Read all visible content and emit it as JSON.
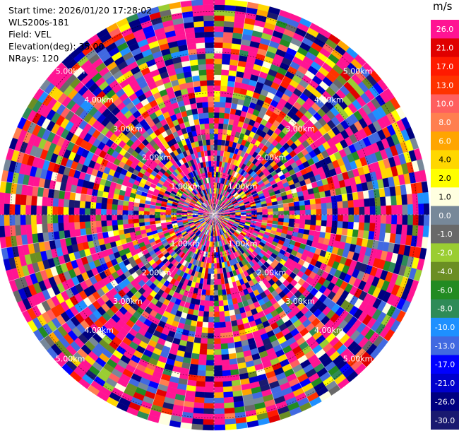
{
  "header": {
    "start_time": "Start time: 2026/01/20 17:28:02",
    "instrument": "WLS200s-181",
    "field": "Field: VEL",
    "elevation": "Elevation(deg): 35.00",
    "nrays": "NRays: 120"
  },
  "colorbar": {
    "unit": "m/s",
    "levels": [
      {
        "label": "26.0",
        "color": "#ff1493"
      },
      {
        "label": "21.0",
        "color": "#e00000"
      },
      {
        "label": "17.0",
        "color": "#ff1a00"
      },
      {
        "label": "13.0",
        "color": "#ff3300"
      },
      {
        "label": "10.0",
        "color": "#ff5f5f"
      },
      {
        "label": "8.0",
        "color": "#ff7f50"
      },
      {
        "label": "6.0",
        "color": "#ffa500"
      },
      {
        "label": "4.0",
        "color": "#ffd700"
      },
      {
        "label": "2.0",
        "color": "#ffff00"
      },
      {
        "label": "1.0",
        "color": "#ffffe0"
      },
      {
        "label": "0.0",
        "color": "#778899"
      },
      {
        "label": "-1.0",
        "color": "#696969"
      },
      {
        "label": "-2.0",
        "color": "#9acd32"
      },
      {
        "label": "-4.0",
        "color": "#6b8e23"
      },
      {
        "label": "-6.0",
        "color": "#228b22"
      },
      {
        "label": "-8.0",
        "color": "#2e8b57"
      },
      {
        "label": "-10.0",
        "color": "#1e90ff"
      },
      {
        "label": "-13.0",
        "color": "#4169e1"
      },
      {
        "label": "-17.0",
        "color": "#0000ff"
      },
      {
        "label": "-21.0",
        "color": "#0000cd"
      },
      {
        "label": "-26.0",
        "color": "#000080"
      },
      {
        "label": "-30.0",
        "color": "#191970"
      }
    ]
  },
  "chart_data": {
    "type": "heatmap",
    "subtype": "ppi",
    "range_rings": [
      {
        "value_km": 1.0,
        "label": "1.00km"
      },
      {
        "value_km": 2.0,
        "label": "2.00km"
      },
      {
        "value_km": 3.0,
        "label": "3.00km"
      },
      {
        "value_km": 4.0,
        "label": "4.00km"
      },
      {
        "value_km": 5.0,
        "label": "5.00km"
      }
    ],
    "max_range_km": 5.3,
    "n_rays": 120,
    "grid": true
  }
}
